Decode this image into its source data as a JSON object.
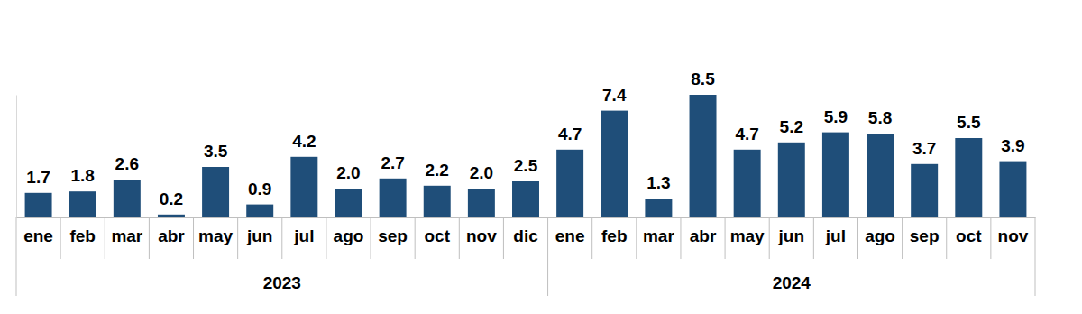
{
  "chart_data": {
    "type": "bar",
    "categories": [
      "ene",
      "feb",
      "mar",
      "abr",
      "may",
      "jun",
      "jul",
      "ago",
      "sep",
      "oct",
      "nov",
      "dic",
      "ene",
      "feb",
      "mar",
      "abr",
      "may",
      "jun",
      "jul",
      "ago",
      "sep",
      "oct",
      "nov"
    ],
    "values": [
      1.7,
      1.8,
      2.6,
      0.2,
      3.5,
      0.9,
      4.2,
      2.0,
      2.7,
      2.2,
      2.0,
      2.5,
      4.7,
      7.4,
      1.3,
      8.5,
      4.7,
      5.2,
      5.9,
      5.8,
      3.7,
      5.5,
      3.9
    ],
    "value_labels": [
      "1.7",
      "1.8",
      "2.6",
      "0.2",
      "3.5",
      "0.9",
      "4.2",
      "2.0",
      "2.7",
      "2.2",
      "2.0",
      "2.5",
      "4.7",
      "7.4",
      "1.3",
      "8.5",
      "4.7",
      "5.2",
      "5.9",
      "5.8",
      "3.7",
      "5.5",
      "3.9"
    ],
    "x_groups": [
      {
        "label": "2023",
        "start": 0,
        "end": 11
      },
      {
        "label": "2024",
        "start": 12,
        "end": 22
      }
    ],
    "color": "#1f4e79",
    "ylim": [
      0,
      8.5
    ],
    "yticks": [
      0
    ],
    "grid": false,
    "data_labels": true,
    "tick_labels": "x"
  }
}
